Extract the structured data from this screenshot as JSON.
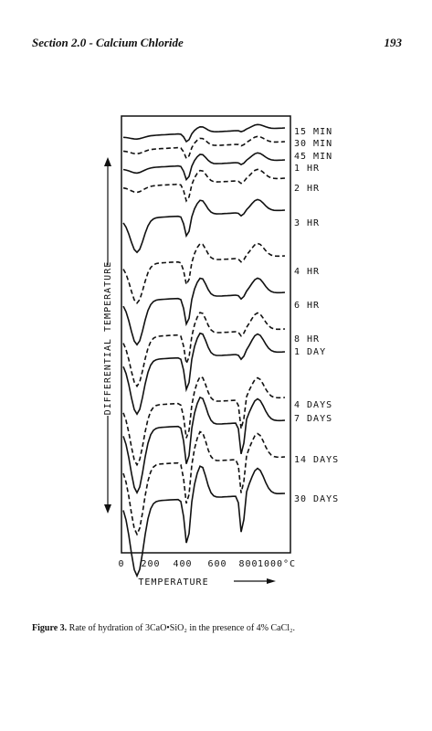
{
  "header": {
    "section": "Section 2.0 - Calcium Chloride",
    "page": "193"
  },
  "figure": {
    "y_axis_label": "DIFFERENTIAL TEMPERATURE",
    "x_axis_label": "TEMPERATURE",
    "x_ticks": [
      "0",
      "200",
      "400",
      "600",
      "800",
      "1000°C"
    ],
    "curve_labels": [
      "15 MIN",
      "30 MIN",
      "45 MIN",
      "1 HR",
      "2 HR",
      "3 HR",
      "4 HR",
      "6 HR",
      "8 HR",
      "1 DAY",
      "4 DAYS",
      "7 DAYS",
      "14 DAYS",
      "30 DAYS"
    ]
  },
  "caption": {
    "label": "Figure 3.",
    "text": "Rate of hydration of 3CaO•SiO₂ in the presence of 4% CaCl₂."
  }
}
